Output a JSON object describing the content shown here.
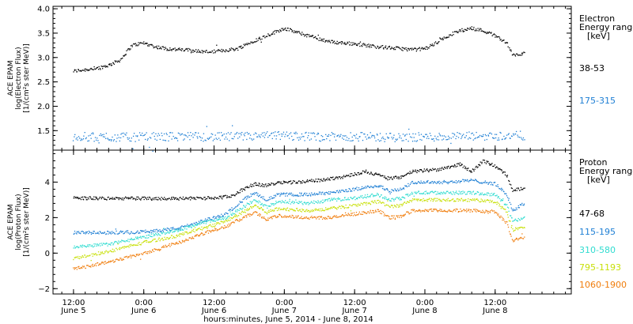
{
  "chart_data": [
    {
      "type": "scatter",
      "panel": "electron",
      "ylabel": [
        "ACE EPAM",
        "log(Electron Flux)",
        "[1/(cm²s ster MeV)]"
      ],
      "ylim": [
        1.1,
        4.05
      ],
      "yticks": [
        1.5,
        2.0,
        2.5,
        3.0,
        3.5,
        4.0
      ],
      "ytick_labels": [
        "1.5",
        "2.0",
        "2.5",
        "3.0",
        "3.5",
        "4.0"
      ],
      "legend_title": [
        "Electron",
        "Energy ranges",
        "[keV]"
      ],
      "series": [
        {
          "name": "38-53",
          "color": "#000000",
          "points": [
            [
              0,
              2.72
            ],
            [
              2,
              2.75
            ],
            [
              4,
              2.78
            ],
            [
              6,
              2.84
            ],
            [
              8,
              2.95
            ],
            [
              10,
              3.25
            ],
            [
              12,
              3.3
            ],
            [
              14,
              3.22
            ],
            [
              16,
              3.18
            ],
            [
              18,
              3.16
            ],
            [
              20,
              3.15
            ],
            [
              22,
              3.12
            ],
            [
              24,
              3.12
            ],
            [
              26,
              3.15
            ],
            [
              28,
              3.18
            ],
            [
              30,
              3.3
            ],
            [
              32,
              3.4
            ],
            [
              34,
              3.5
            ],
            [
              36,
              3.6
            ],
            [
              38,
              3.52
            ],
            [
              40,
              3.45
            ],
            [
              42,
              3.38
            ],
            [
              44,
              3.32
            ],
            [
              46,
              3.3
            ],
            [
              48,
              3.28
            ],
            [
              50,
              3.25
            ],
            [
              52,
              3.22
            ],
            [
              54,
              3.2
            ],
            [
              56,
              3.18
            ],
            [
              58,
              3.16
            ],
            [
              60,
              3.18
            ],
            [
              62,
              3.3
            ],
            [
              64,
              3.45
            ],
            [
              66,
              3.55
            ],
            [
              68,
              3.6
            ],
            [
              70,
              3.55
            ],
            [
              72,
              3.45
            ],
            [
              73,
              3.38
            ],
            [
              74,
              3.3
            ],
            [
              75,
              3.05
            ],
            [
              76,
              3.05
            ],
            [
              77,
              3.08
            ]
          ]
        },
        {
          "name": "175-315",
          "color": "#1e7fd4",
          "points": [
            [
              0,
              1.38
            ],
            [
              6,
              1.36
            ],
            [
              12,
              1.37
            ],
            [
              18,
              1.38
            ],
            [
              24,
              1.37
            ],
            [
              30,
              1.38
            ],
            [
              36,
              1.4
            ],
            [
              42,
              1.37
            ],
            [
              48,
              1.38
            ],
            [
              54,
              1.36
            ],
            [
              60,
              1.37
            ],
            [
              66,
              1.38
            ],
            [
              72,
              1.39
            ],
            [
              77,
              1.4
            ]
          ]
        }
      ]
    },
    {
      "type": "scatter",
      "panel": "proton",
      "ylabel": [
        "ACE EPAM",
        "log(Proton Flux)",
        "[1/(cm²s ster MeV)]"
      ],
      "ylim": [
        -2.3,
        5.8
      ],
      "yticks": [
        -2,
        0,
        2,
        4
      ],
      "ytick_labels": [
        "−2",
        "0",
        "2",
        "4"
      ],
      "legend_title": [
        "Proton",
        "Energy ranges",
        "[keV]"
      ],
      "series": [
        {
          "name": "47-68",
          "color": "#000000",
          "points": [
            [
              0,
              3.1
            ],
            [
              6,
              3.08
            ],
            [
              12,
              3.08
            ],
            [
              18,
              3.08
            ],
            [
              24,
              3.1
            ],
            [
              27,
              3.2
            ],
            [
              29,
              3.6
            ],
            [
              31,
              3.9
            ],
            [
              33,
              3.8
            ],
            [
              35,
              4.0
            ],
            [
              38,
              4.0
            ],
            [
              42,
              4.1
            ],
            [
              46,
              4.3
            ],
            [
              50,
              4.6
            ],
            [
              54,
              4.2
            ],
            [
              56,
              4.3
            ],
            [
              58,
              4.6
            ],
            [
              62,
              4.7
            ],
            [
              66,
              5.0
            ],
            [
              68,
              4.6
            ],
            [
              70,
              5.2
            ],
            [
              72,
              4.9
            ],
            [
              74,
              4.4
            ],
            [
              75,
              3.5
            ],
            [
              77,
              3.7
            ]
          ]
        },
        {
          "name": "115-195",
          "color": "#1e7fd4",
          "points": [
            [
              0,
              1.15
            ],
            [
              6,
              1.15
            ],
            [
              12,
              1.2
            ],
            [
              18,
              1.4
            ],
            [
              22,
              1.8
            ],
            [
              26,
              2.2
            ],
            [
              29,
              3.0
            ],
            [
              31,
              3.4
            ],
            [
              33,
              3.0
            ],
            [
              35,
              3.3
            ],
            [
              40,
              3.3
            ],
            [
              44,
              3.4
            ],
            [
              48,
              3.6
            ],
            [
              52,
              3.8
            ],
            [
              54,
              3.5
            ],
            [
              56,
              3.6
            ],
            [
              58,
              4.0
            ],
            [
              64,
              4.0
            ],
            [
              68,
              4.1
            ],
            [
              72,
              3.9
            ],
            [
              74,
              3.3
            ],
            [
              75,
              2.4
            ],
            [
              77,
              2.8
            ]
          ]
        },
        {
          "name": "310-580",
          "color": "#30dcd0",
          "points": [
            [
              0,
              0.35
            ],
            [
              6,
              0.5
            ],
            [
              12,
              0.9
            ],
            [
              18,
              1.3
            ],
            [
              22,
              1.7
            ],
            [
              26,
              2.0
            ],
            [
              29,
              2.6
            ],
            [
              31,
              3.0
            ],
            [
              33,
              2.6
            ],
            [
              35,
              2.9
            ],
            [
              40,
              2.8
            ],
            [
              44,
              3.0
            ],
            [
              48,
              3.1
            ],
            [
              52,
              3.3
            ],
            [
              54,
              3.0
            ],
            [
              56,
              3.1
            ],
            [
              58,
              3.4
            ],
            [
              64,
              3.4
            ],
            [
              68,
              3.4
            ],
            [
              72,
              3.3
            ],
            [
              74,
              2.7
            ],
            [
              75,
              1.8
            ],
            [
              77,
              2.0
            ]
          ]
        },
        {
          "name": "795-1193",
          "color": "#c8e00a",
          "points": [
            [
              0,
              -0.3
            ],
            [
              6,
              0.1
            ],
            [
              12,
              0.6
            ],
            [
              18,
              1.0
            ],
            [
              22,
              1.4
            ],
            [
              26,
              1.8
            ],
            [
              29,
              2.3
            ],
            [
              31,
              2.7
            ],
            [
              33,
              2.3
            ],
            [
              35,
              2.5
            ],
            [
              40,
              2.4
            ],
            [
              44,
              2.5
            ],
            [
              48,
              2.7
            ],
            [
              52,
              2.9
            ],
            [
              54,
              2.6
            ],
            [
              56,
              2.7
            ],
            [
              58,
              3.0
            ],
            [
              64,
              3.0
            ],
            [
              68,
              3.0
            ],
            [
              72,
              2.9
            ],
            [
              74,
              2.3
            ],
            [
              75,
              1.3
            ],
            [
              77,
              1.5
            ]
          ]
        },
        {
          "name": "1060-1900",
          "color": "#f07d0c",
          "points": [
            [
              0,
              -0.9
            ],
            [
              6,
              -0.5
            ],
            [
              12,
              0.0
            ],
            [
              18,
              0.6
            ],
            [
              22,
              1.1
            ],
            [
              26,
              1.5
            ],
            [
              29,
              2.0
            ],
            [
              31,
              2.3
            ],
            [
              33,
              1.9
            ],
            [
              35,
              2.1
            ],
            [
              40,
              2.0
            ],
            [
              44,
              2.0
            ],
            [
              48,
              2.2
            ],
            [
              52,
              2.4
            ],
            [
              54,
              2.0
            ],
            [
              56,
              2.1
            ],
            [
              58,
              2.4
            ],
            [
              64,
              2.4
            ],
            [
              68,
              2.4
            ],
            [
              72,
              2.3
            ],
            [
              74,
              1.7
            ],
            [
              75,
              0.7
            ],
            [
              77,
              0.9
            ]
          ]
        }
      ]
    }
  ],
  "xaxis": {
    "xlabel": "hours:minutes, June  5, 2014 - June  8, 2014",
    "xlim": [
      -3.5,
      85
    ],
    "ticks": [
      {
        "x": 0,
        "time": "12:00",
        "day": "June 5"
      },
      {
        "x": 12,
        "time": "0:00",
        "day": "June 6"
      },
      {
        "x": 24,
        "time": "12:00",
        "day": "June 6"
      },
      {
        "x": 36,
        "time": "0:00",
        "day": "June 7"
      },
      {
        "x": 48,
        "time": "12:00",
        "day": "June 7"
      },
      {
        "x": 60,
        "time": "0:00",
        "day": "June 8"
      },
      {
        "x": 72,
        "time": "12:00",
        "day": "June 8"
      }
    ]
  },
  "axis_color": "#000000",
  "label_color": "#000000"
}
